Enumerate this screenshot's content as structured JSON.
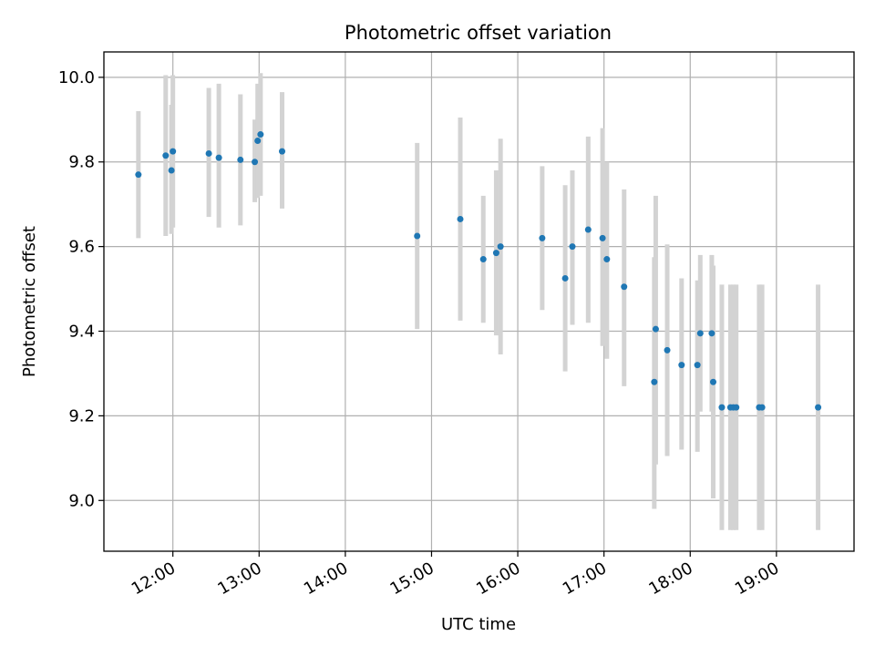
{
  "chart_data": {
    "type": "scatter",
    "title": "Photometric offset variation",
    "xlabel": "UTC time",
    "ylabel": "Photometric offset",
    "xlim": [
      "11:12",
      "19:54"
    ],
    "ylim": [
      8.88,
      10.06
    ],
    "x_ticks": [
      "12:00",
      "13:00",
      "14:00",
      "15:00",
      "16:00",
      "17:00",
      "18:00",
      "19:00"
    ],
    "y_ticks": [
      "9.0",
      "9.2",
      "9.4",
      "9.6",
      "9.8",
      "10.0"
    ],
    "grid": true,
    "colors": {
      "points": "#1f77b4",
      "errorbars": "#d3d3d3",
      "grid": "#b0b0b0"
    },
    "series": [
      {
        "points": [
          {
            "x": "11:36",
            "y": 9.77,
            "lo": 9.62,
            "hi": 9.92
          },
          {
            "x": "11:55",
            "y": 9.815,
            "lo": 9.625,
            "hi": 10.005
          },
          {
            "x": "11:59",
            "y": 9.78,
            "lo": 9.63,
            "hi": 9.935
          },
          {
            "x": "12:00",
            "y": 9.825,
            "lo": 9.645,
            "hi": 10.005
          },
          {
            "x": "12:25",
            "y": 9.82,
            "lo": 9.67,
            "hi": 9.975
          },
          {
            "x": "12:32",
            "y": 9.81,
            "lo": 9.645,
            "hi": 9.985
          },
          {
            "x": "12:47",
            "y": 9.805,
            "lo": 9.65,
            "hi": 9.96
          },
          {
            "x": "12:57",
            "y": 9.8,
            "lo": 9.705,
            "hi": 9.9
          },
          {
            "x": "12:59",
            "y": 9.85,
            "lo": 9.715,
            "hi": 9.985
          },
          {
            "x": "13:01",
            "y": 9.865,
            "lo": 9.72,
            "hi": 10.01
          },
          {
            "x": "13:16",
            "y": 9.825,
            "lo": 9.69,
            "hi": 9.965
          },
          {
            "x": "14:50",
            "y": 9.625,
            "lo": 9.405,
            "hi": 9.845
          },
          {
            "x": "15:20",
            "y": 9.665,
            "lo": 9.425,
            "hi": 9.905
          },
          {
            "x": "15:36",
            "y": 9.57,
            "lo": 9.42,
            "hi": 9.72
          },
          {
            "x": "15:45",
            "y": 9.585,
            "lo": 9.39,
            "hi": 9.78
          },
          {
            "x": "15:48",
            "y": 9.6,
            "lo": 9.345,
            "hi": 9.855
          },
          {
            "x": "16:17",
            "y": 9.62,
            "lo": 9.45,
            "hi": 9.79
          },
          {
            "x": "16:33",
            "y": 9.525,
            "lo": 9.305,
            "hi": 9.745
          },
          {
            "x": "16:38",
            "y": 9.6,
            "lo": 9.415,
            "hi": 9.78
          },
          {
            "x": "16:49",
            "y": 9.64,
            "lo": 9.42,
            "hi": 9.86
          },
          {
            "x": "16:59",
            "y": 9.62,
            "lo": 9.365,
            "hi": 9.88
          },
          {
            "x": "17:02",
            "y": 9.57,
            "lo": 9.335,
            "hi": 9.8
          },
          {
            "x": "17:14",
            "y": 9.505,
            "lo": 9.27,
            "hi": 9.735
          },
          {
            "x": "17:35",
            "y": 9.28,
            "lo": 8.98,
            "hi": 9.575
          },
          {
            "x": "17:36",
            "y": 9.405,
            "lo": 9.085,
            "hi": 9.72
          },
          {
            "x": "17:44",
            "y": 9.355,
            "lo": 9.105,
            "hi": 9.605
          },
          {
            "x": "17:54",
            "y": 9.32,
            "lo": 9.12,
            "hi": 9.525
          },
          {
            "x": "18:05",
            "y": 9.32,
            "lo": 9.115,
            "hi": 9.52
          },
          {
            "x": "18:07",
            "y": 9.395,
            "lo": 9.21,
            "hi": 9.58
          },
          {
            "x": "18:15",
            "y": 9.395,
            "lo": 9.21,
            "hi": 9.58
          },
          {
            "x": "18:16",
            "y": 9.28,
            "lo": 9.005,
            "hi": 9.555
          },
          {
            "x": "18:22",
            "y": 9.22,
            "lo": 8.93,
            "hi": 9.51
          },
          {
            "x": "18:28",
            "y": 9.22,
            "lo": 8.93,
            "hi": 9.51
          },
          {
            "x": "18:30",
            "y": 9.22,
            "lo": 8.93,
            "hi": 9.51
          },
          {
            "x": "18:32",
            "y": 9.22,
            "lo": 8.93,
            "hi": 9.51
          },
          {
            "x": "18:48",
            "y": 9.22,
            "lo": 8.93,
            "hi": 9.51
          },
          {
            "x": "18:50",
            "y": 9.22,
            "lo": 8.93,
            "hi": 9.51
          },
          {
            "x": "19:29",
            "y": 9.22,
            "lo": 8.93,
            "hi": 9.51
          }
        ]
      }
    ]
  }
}
